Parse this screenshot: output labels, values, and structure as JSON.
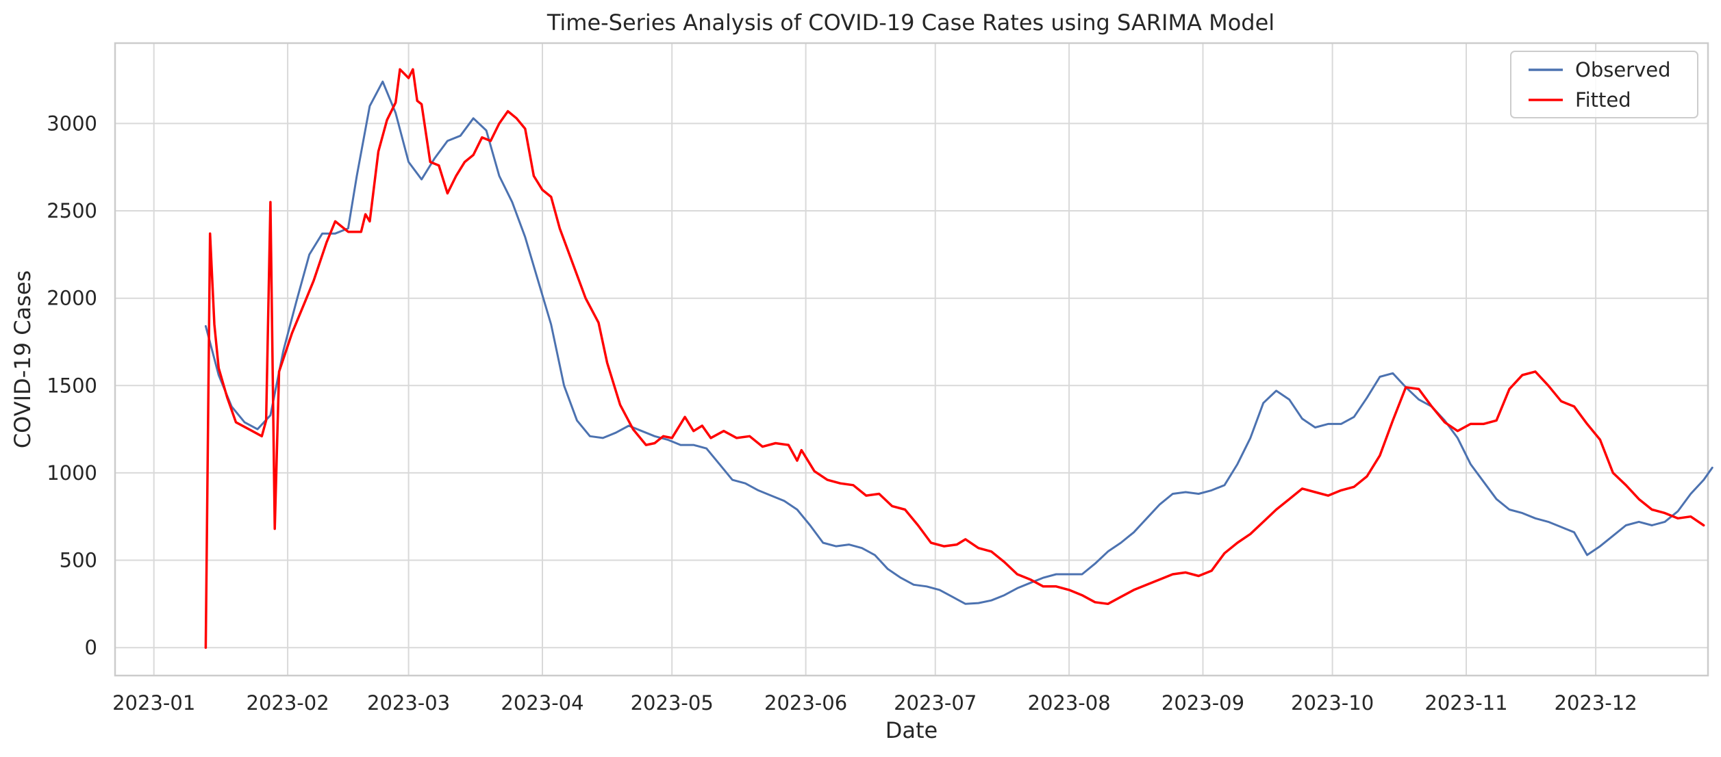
{
  "chart_data": {
    "type": "line",
    "title": "Time-Series Analysis of COVID-19 Case Rates using SARIMA Model",
    "xlabel": "Date",
    "ylabel": "COVID-19 Cases",
    "xlim": [
      "2022-12-23",
      "2023-12-27"
    ],
    "ylim": [
      -160,
      3460
    ],
    "x_ticks": [
      "2023-01-01",
      "2023-02-01",
      "2023-03-01",
      "2023-04-01",
      "2023-05-01",
      "2023-06-01",
      "2023-07-01",
      "2023-08-01",
      "2023-09-01",
      "2023-10-01",
      "2023-11-01",
      "2023-12-01"
    ],
    "x_tick_labels": [
      "2023-01",
      "2023-02",
      "2023-03",
      "2023-04",
      "2023-05",
      "2023-06",
      "2023-07",
      "2023-08",
      "2023-09",
      "2023-10",
      "2023-11",
      "2023-12"
    ],
    "y_ticks": [
      0,
      500,
      1000,
      1500,
      2000,
      2500,
      3000
    ],
    "y_tick_labels": [
      "0",
      "500",
      "1000",
      "1500",
      "2000",
      "2500",
      "3000"
    ],
    "grid": true,
    "legend": {
      "placement": "top-right"
    },
    "series": [
      {
        "name": "Observed",
        "color": "#4c72b0",
        "points": [
          [
            "2023-01-13",
            1840
          ],
          [
            "2023-01-16",
            1560
          ],
          [
            "2023-01-19",
            1380
          ],
          [
            "2023-01-22",
            1290
          ],
          [
            "2023-01-25",
            1250
          ],
          [
            "2023-01-28",
            1330
          ],
          [
            "2023-01-31",
            1700
          ],
          [
            "2023-02-03",
            1980
          ],
          [
            "2023-02-06",
            2250
          ],
          [
            "2023-02-09",
            2370
          ],
          [
            "2023-02-12",
            2370
          ],
          [
            "2023-02-15",
            2400
          ],
          [
            "2023-02-17",
            2700
          ],
          [
            "2023-02-20",
            3100
          ],
          [
            "2023-02-23",
            3240
          ],
          [
            "2023-02-26",
            3060
          ],
          [
            "2023-03-01",
            2780
          ],
          [
            "2023-03-04",
            2680
          ],
          [
            "2023-03-07",
            2800
          ],
          [
            "2023-03-10",
            2900
          ],
          [
            "2023-03-13",
            2930
          ],
          [
            "2023-03-16",
            3030
          ],
          [
            "2023-03-19",
            2960
          ],
          [
            "2023-03-22",
            2700
          ],
          [
            "2023-03-25",
            2550
          ],
          [
            "2023-03-28",
            2350
          ],
          [
            "2023-03-31",
            2100
          ],
          [
            "2023-04-03",
            1850
          ],
          [
            "2023-04-06",
            1500
          ],
          [
            "2023-04-09",
            1300
          ],
          [
            "2023-04-12",
            1210
          ],
          [
            "2023-04-15",
            1200
          ],
          [
            "2023-04-18",
            1230
          ],
          [
            "2023-04-21",
            1270
          ],
          [
            "2023-04-24",
            1240
          ],
          [
            "2023-04-27",
            1210
          ],
          [
            "2023-04-30",
            1190
          ],
          [
            "2023-05-03",
            1160
          ],
          [
            "2023-05-06",
            1160
          ],
          [
            "2023-05-09",
            1140
          ],
          [
            "2023-05-12",
            1050
          ],
          [
            "2023-05-15",
            960
          ],
          [
            "2023-05-18",
            940
          ],
          [
            "2023-05-21",
            900
          ],
          [
            "2023-05-24",
            870
          ],
          [
            "2023-05-27",
            840
          ],
          [
            "2023-05-30",
            790
          ],
          [
            "2023-06-02",
            700
          ],
          [
            "2023-06-05",
            600
          ],
          [
            "2023-06-08",
            580
          ],
          [
            "2023-06-11",
            590
          ],
          [
            "2023-06-14",
            570
          ],
          [
            "2023-06-17",
            530
          ],
          [
            "2023-06-20",
            450
          ],
          [
            "2023-06-23",
            400
          ],
          [
            "2023-06-26",
            360
          ],
          [
            "2023-06-29",
            350
          ],
          [
            "2023-07-02",
            330
          ],
          [
            "2023-07-05",
            290
          ],
          [
            "2023-07-08",
            250
          ],
          [
            "2023-07-11",
            255
          ],
          [
            "2023-07-14",
            270
          ],
          [
            "2023-07-17",
            300
          ],
          [
            "2023-07-20",
            340
          ],
          [
            "2023-07-23",
            370
          ],
          [
            "2023-07-26",
            400
          ],
          [
            "2023-07-29",
            420
          ],
          [
            "2023-08-01",
            420
          ],
          [
            "2023-08-04",
            420
          ],
          [
            "2023-08-07",
            480
          ],
          [
            "2023-08-10",
            550
          ],
          [
            "2023-08-13",
            600
          ],
          [
            "2023-08-16",
            660
          ],
          [
            "2023-08-19",
            740
          ],
          [
            "2023-08-22",
            820
          ],
          [
            "2023-08-25",
            880
          ],
          [
            "2023-08-28",
            890
          ],
          [
            "2023-08-31",
            880
          ],
          [
            "2023-09-03",
            900
          ],
          [
            "2023-09-06",
            930
          ],
          [
            "2023-09-09",
            1050
          ],
          [
            "2023-09-12",
            1200
          ],
          [
            "2023-09-15",
            1400
          ],
          [
            "2023-09-18",
            1470
          ],
          [
            "2023-09-21",
            1420
          ],
          [
            "2023-09-24",
            1310
          ],
          [
            "2023-09-27",
            1260
          ],
          [
            "2023-09-30",
            1280
          ],
          [
            "2023-10-03",
            1280
          ],
          [
            "2023-10-06",
            1320
          ],
          [
            "2023-10-09",
            1430
          ],
          [
            "2023-10-12",
            1550
          ],
          [
            "2023-10-15",
            1570
          ],
          [
            "2023-10-18",
            1490
          ],
          [
            "2023-10-21",
            1420
          ],
          [
            "2023-10-24",
            1380
          ],
          [
            "2023-10-27",
            1300
          ],
          [
            "2023-10-30",
            1200
          ],
          [
            "2023-11-02",
            1050
          ],
          [
            "2023-11-05",
            950
          ],
          [
            "2023-11-08",
            850
          ],
          [
            "2023-11-11",
            790
          ],
          [
            "2023-11-14",
            770
          ],
          [
            "2023-11-17",
            740
          ],
          [
            "2023-11-20",
            720
          ],
          [
            "2023-11-23",
            690
          ],
          [
            "2023-11-26",
            660
          ],
          [
            "2023-11-29",
            530
          ],
          [
            "2023-12-02",
            580
          ],
          [
            "2023-12-05",
            640
          ],
          [
            "2023-12-08",
            700
          ],
          [
            "2023-12-11",
            720
          ],
          [
            "2023-12-14",
            700
          ],
          [
            "2023-12-17",
            720
          ],
          [
            "2023-12-20",
            780
          ],
          [
            "2023-12-23",
            880
          ],
          [
            "2023-12-26",
            960
          ],
          [
            "2023-12-28",
            1030
          ]
        ]
      },
      {
        "name": "Fitted",
        "color": "#ff0000",
        "points": [
          [
            "2023-01-13",
            0
          ],
          [
            "2023-01-14",
            2370
          ],
          [
            "2023-01-15",
            1850
          ],
          [
            "2023-01-16",
            1600
          ],
          [
            "2023-01-18",
            1430
          ],
          [
            "2023-01-20",
            1290
          ],
          [
            "2023-01-23",
            1250
          ],
          [
            "2023-01-26",
            1210
          ],
          [
            "2023-01-27",
            1300
          ],
          [
            "2023-01-28",
            2550
          ],
          [
            "2023-01-29",
            680
          ],
          [
            "2023-01-30",
            1580
          ],
          [
            "2023-02-02",
            1800
          ],
          [
            "2023-02-05",
            1980
          ],
          [
            "2023-02-07",
            2100
          ],
          [
            "2023-02-10",
            2320
          ],
          [
            "2023-02-12",
            2440
          ],
          [
            "2023-02-15",
            2380
          ],
          [
            "2023-02-18",
            2380
          ],
          [
            "2023-02-19",
            2480
          ],
          [
            "2023-02-20",
            2440
          ],
          [
            "2023-02-22",
            2840
          ],
          [
            "2023-02-24",
            3020
          ],
          [
            "2023-02-26",
            3120
          ],
          [
            "2023-02-27",
            3310
          ],
          [
            "2023-03-01",
            3260
          ],
          [
            "2023-03-02",
            3310
          ],
          [
            "2023-03-03",
            3130
          ],
          [
            "2023-03-04",
            3110
          ],
          [
            "2023-03-06",
            2780
          ],
          [
            "2023-03-08",
            2760
          ],
          [
            "2023-03-10",
            2600
          ],
          [
            "2023-03-12",
            2700
          ],
          [
            "2023-03-14",
            2780
          ],
          [
            "2023-03-16",
            2820
          ],
          [
            "2023-03-18",
            2920
          ],
          [
            "2023-03-20",
            2900
          ],
          [
            "2023-03-22",
            3000
          ],
          [
            "2023-03-24",
            3070
          ],
          [
            "2023-03-26",
            3030
          ],
          [
            "2023-03-28",
            2970
          ],
          [
            "2023-03-30",
            2700
          ],
          [
            "2023-04-01",
            2620
          ],
          [
            "2023-04-03",
            2580
          ],
          [
            "2023-04-05",
            2400
          ],
          [
            "2023-04-08",
            2200
          ],
          [
            "2023-04-11",
            2000
          ],
          [
            "2023-04-14",
            1860
          ],
          [
            "2023-04-16",
            1630
          ],
          [
            "2023-04-19",
            1390
          ],
          [
            "2023-04-22",
            1250
          ],
          [
            "2023-04-25",
            1160
          ],
          [
            "2023-04-27",
            1170
          ],
          [
            "2023-04-29",
            1210
          ],
          [
            "2023-05-01",
            1200
          ],
          [
            "2023-05-04",
            1320
          ],
          [
            "2023-05-06",
            1240
          ],
          [
            "2023-05-08",
            1270
          ],
          [
            "2023-05-10",
            1200
          ],
          [
            "2023-05-13",
            1240
          ],
          [
            "2023-05-16",
            1200
          ],
          [
            "2023-05-19",
            1210
          ],
          [
            "2023-05-22",
            1150
          ],
          [
            "2023-05-25",
            1170
          ],
          [
            "2023-05-28",
            1160
          ],
          [
            "2023-05-30",
            1070
          ],
          [
            "2023-05-31",
            1130
          ],
          [
            "2023-06-03",
            1010
          ],
          [
            "2023-06-06",
            960
          ],
          [
            "2023-06-09",
            940
          ],
          [
            "2023-06-12",
            930
          ],
          [
            "2023-06-15",
            870
          ],
          [
            "2023-06-18",
            880
          ],
          [
            "2023-06-21",
            810
          ],
          [
            "2023-06-24",
            790
          ],
          [
            "2023-06-27",
            700
          ],
          [
            "2023-06-30",
            600
          ],
          [
            "2023-07-03",
            580
          ],
          [
            "2023-07-06",
            590
          ],
          [
            "2023-07-08",
            620
          ],
          [
            "2023-07-11",
            570
          ],
          [
            "2023-07-14",
            550
          ],
          [
            "2023-07-17",
            490
          ],
          [
            "2023-07-20",
            420
          ],
          [
            "2023-07-23",
            390
          ],
          [
            "2023-07-26",
            350
          ],
          [
            "2023-07-29",
            350
          ],
          [
            "2023-08-01",
            330
          ],
          [
            "2023-08-04",
            300
          ],
          [
            "2023-08-07",
            260
          ],
          [
            "2023-08-10",
            250
          ],
          [
            "2023-08-13",
            290
          ],
          [
            "2023-08-16",
            330
          ],
          [
            "2023-08-19",
            360
          ],
          [
            "2023-08-22",
            390
          ],
          [
            "2023-08-25",
            420
          ],
          [
            "2023-08-28",
            430
          ],
          [
            "2023-08-31",
            410
          ],
          [
            "2023-09-03",
            440
          ],
          [
            "2023-09-06",
            540
          ],
          [
            "2023-09-09",
            600
          ],
          [
            "2023-09-12",
            650
          ],
          [
            "2023-09-15",
            720
          ],
          [
            "2023-09-18",
            790
          ],
          [
            "2023-09-21",
            850
          ],
          [
            "2023-09-24",
            910
          ],
          [
            "2023-09-27",
            890
          ],
          [
            "2023-09-30",
            870
          ],
          [
            "2023-10-03",
            900
          ],
          [
            "2023-10-06",
            920
          ],
          [
            "2023-10-09",
            980
          ],
          [
            "2023-10-12",
            1100
          ],
          [
            "2023-10-15",
            1300
          ],
          [
            "2023-10-18",
            1490
          ],
          [
            "2023-10-21",
            1480
          ],
          [
            "2023-10-24",
            1380
          ],
          [
            "2023-10-27",
            1290
          ],
          [
            "2023-10-30",
            1240
          ],
          [
            "2023-11-02",
            1280
          ],
          [
            "2023-11-05",
            1280
          ],
          [
            "2023-11-08",
            1300
          ],
          [
            "2023-11-11",
            1480
          ],
          [
            "2023-11-14",
            1560
          ],
          [
            "2023-11-17",
            1580
          ],
          [
            "2023-11-20",
            1500
          ],
          [
            "2023-11-23",
            1410
          ],
          [
            "2023-11-26",
            1380
          ],
          [
            "2023-11-29",
            1280
          ],
          [
            "2023-12-02",
            1190
          ],
          [
            "2023-12-05",
            1000
          ],
          [
            "2023-12-08",
            930
          ],
          [
            "2023-12-11",
            850
          ],
          [
            "2023-12-14",
            790
          ],
          [
            "2023-12-17",
            770
          ],
          [
            "2023-12-20",
            740
          ],
          [
            "2023-12-23",
            750
          ],
          [
            "2023-12-26",
            700
          ]
        ]
      }
    ]
  }
}
